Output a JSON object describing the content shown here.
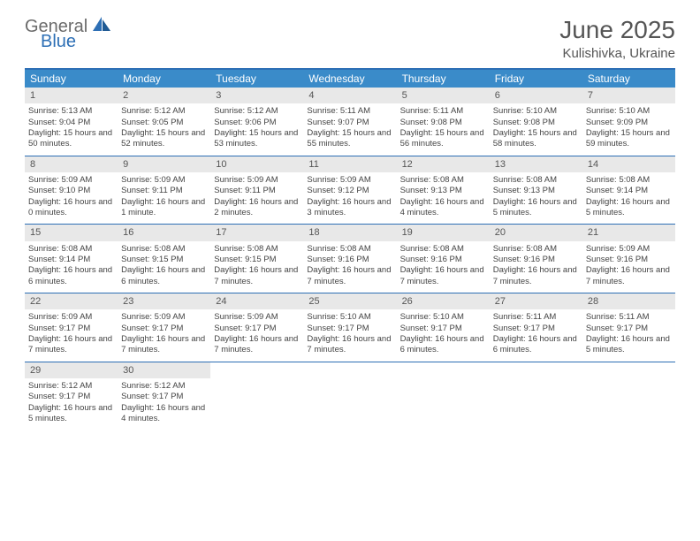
{
  "logo": {
    "text1": "General",
    "text2": "Blue"
  },
  "title": "June 2025",
  "location": "Kulishivka, Ukraine",
  "day_names": [
    "Sunday",
    "Monday",
    "Tuesday",
    "Wednesday",
    "Thursday",
    "Friday",
    "Saturday"
  ],
  "colors": {
    "header_bar": "#3a8bc9",
    "border": "#2d6fb5",
    "daynum_bg": "#e8e8e8",
    "text": "#444444"
  },
  "weeks": [
    [
      {
        "n": "1",
        "sr": "5:13 AM",
        "ss": "9:04 PM",
        "dl": "15 hours and 50 minutes."
      },
      {
        "n": "2",
        "sr": "5:12 AM",
        "ss": "9:05 PM",
        "dl": "15 hours and 52 minutes."
      },
      {
        "n": "3",
        "sr": "5:12 AM",
        "ss": "9:06 PM",
        "dl": "15 hours and 53 minutes."
      },
      {
        "n": "4",
        "sr": "5:11 AM",
        "ss": "9:07 PM",
        "dl": "15 hours and 55 minutes."
      },
      {
        "n": "5",
        "sr": "5:11 AM",
        "ss": "9:08 PM",
        "dl": "15 hours and 56 minutes."
      },
      {
        "n": "6",
        "sr": "5:10 AM",
        "ss": "9:08 PM",
        "dl": "15 hours and 58 minutes."
      },
      {
        "n": "7",
        "sr": "5:10 AM",
        "ss": "9:09 PM",
        "dl": "15 hours and 59 minutes."
      }
    ],
    [
      {
        "n": "8",
        "sr": "5:09 AM",
        "ss": "9:10 PM",
        "dl": "16 hours and 0 minutes."
      },
      {
        "n": "9",
        "sr": "5:09 AM",
        "ss": "9:11 PM",
        "dl": "16 hours and 1 minute."
      },
      {
        "n": "10",
        "sr": "5:09 AM",
        "ss": "9:11 PM",
        "dl": "16 hours and 2 minutes."
      },
      {
        "n": "11",
        "sr": "5:09 AM",
        "ss": "9:12 PM",
        "dl": "16 hours and 3 minutes."
      },
      {
        "n": "12",
        "sr": "5:08 AM",
        "ss": "9:13 PM",
        "dl": "16 hours and 4 minutes."
      },
      {
        "n": "13",
        "sr": "5:08 AM",
        "ss": "9:13 PM",
        "dl": "16 hours and 5 minutes."
      },
      {
        "n": "14",
        "sr": "5:08 AM",
        "ss": "9:14 PM",
        "dl": "16 hours and 5 minutes."
      }
    ],
    [
      {
        "n": "15",
        "sr": "5:08 AM",
        "ss": "9:14 PM",
        "dl": "16 hours and 6 minutes."
      },
      {
        "n": "16",
        "sr": "5:08 AM",
        "ss": "9:15 PM",
        "dl": "16 hours and 6 minutes."
      },
      {
        "n": "17",
        "sr": "5:08 AM",
        "ss": "9:15 PM",
        "dl": "16 hours and 7 minutes."
      },
      {
        "n": "18",
        "sr": "5:08 AM",
        "ss": "9:16 PM",
        "dl": "16 hours and 7 minutes."
      },
      {
        "n": "19",
        "sr": "5:08 AM",
        "ss": "9:16 PM",
        "dl": "16 hours and 7 minutes."
      },
      {
        "n": "20",
        "sr": "5:08 AM",
        "ss": "9:16 PM",
        "dl": "16 hours and 7 minutes."
      },
      {
        "n": "21",
        "sr": "5:09 AM",
        "ss": "9:16 PM",
        "dl": "16 hours and 7 minutes."
      }
    ],
    [
      {
        "n": "22",
        "sr": "5:09 AM",
        "ss": "9:17 PM",
        "dl": "16 hours and 7 minutes."
      },
      {
        "n": "23",
        "sr": "5:09 AM",
        "ss": "9:17 PM",
        "dl": "16 hours and 7 minutes."
      },
      {
        "n": "24",
        "sr": "5:09 AM",
        "ss": "9:17 PM",
        "dl": "16 hours and 7 minutes."
      },
      {
        "n": "25",
        "sr": "5:10 AM",
        "ss": "9:17 PM",
        "dl": "16 hours and 7 minutes."
      },
      {
        "n": "26",
        "sr": "5:10 AM",
        "ss": "9:17 PM",
        "dl": "16 hours and 6 minutes."
      },
      {
        "n": "27",
        "sr": "5:11 AM",
        "ss": "9:17 PM",
        "dl": "16 hours and 6 minutes."
      },
      {
        "n": "28",
        "sr": "5:11 AM",
        "ss": "9:17 PM",
        "dl": "16 hours and 5 minutes."
      }
    ],
    [
      {
        "n": "29",
        "sr": "5:12 AM",
        "ss": "9:17 PM",
        "dl": "16 hours and 5 minutes."
      },
      {
        "n": "30",
        "sr": "5:12 AM",
        "ss": "9:17 PM",
        "dl": "16 hours and 4 minutes."
      },
      null,
      null,
      null,
      null,
      null
    ]
  ],
  "labels": {
    "sunrise": "Sunrise:",
    "sunset": "Sunset:",
    "daylight": "Daylight:"
  }
}
